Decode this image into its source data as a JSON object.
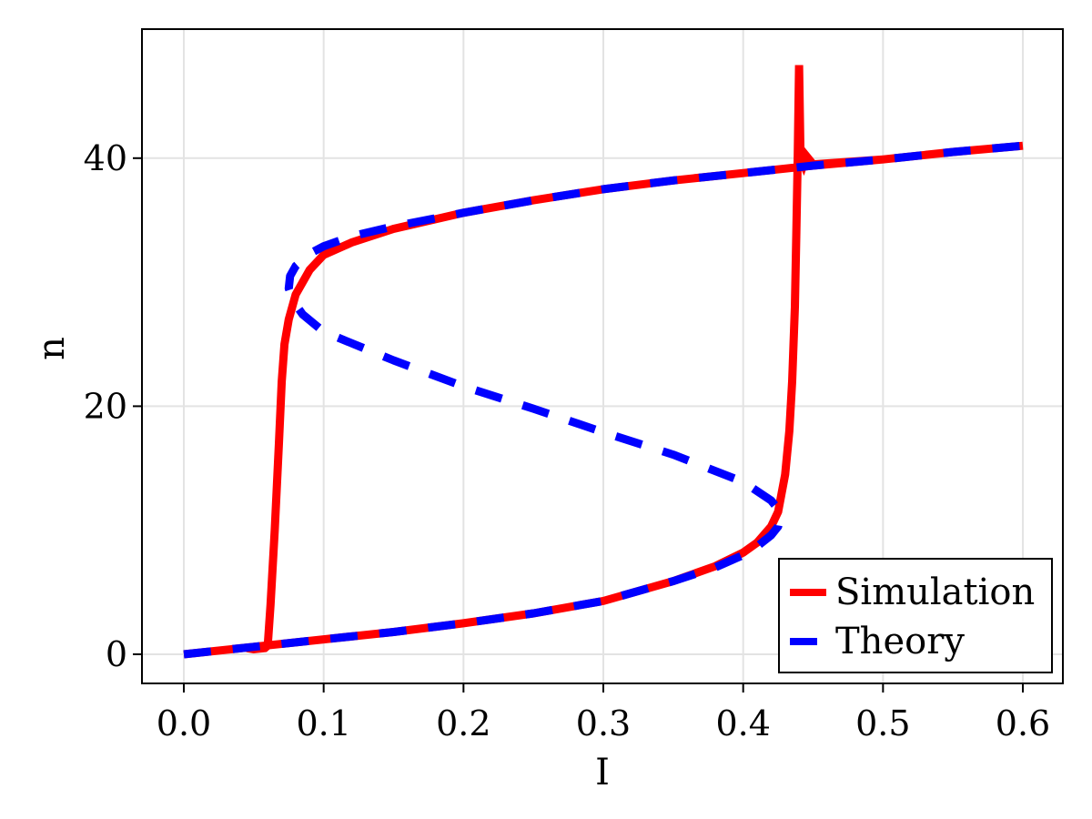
{
  "chart_data": {
    "type": "line",
    "title": "",
    "xlabel": "I",
    "ylabel": "n",
    "xlim": [
      -0.03,
      0.63
    ],
    "ylim": [
      -2.4,
      50.3
    ],
    "xticks": [
      0.0,
      0.1,
      0.2,
      0.3,
      0.4,
      0.5,
      0.6
    ],
    "xtick_labels": [
      "0.0",
      "0.1",
      "0.2",
      "0.3",
      "0.4",
      "0.5",
      "0.6"
    ],
    "yticks": [
      0,
      20,
      40
    ],
    "ytick_labels": [
      "0",
      "20",
      "40"
    ],
    "grid": true,
    "legend_position": "lower right",
    "series": [
      {
        "name": "Simulation",
        "color": "#ff0000",
        "style": "solid",
        "x": [
          0.0,
          0.05,
          0.1,
          0.15,
          0.2,
          0.25,
          0.3,
          0.35,
          0.38,
          0.4,
          0.41,
          0.42,
          0.425,
          0.43,
          0.433,
          0.435,
          0.437,
          0.438,
          0.439,
          0.44,
          0.441,
          0.443,
          0.445,
          0.45,
          0.5,
          0.55,
          0.6,
          0.55,
          0.5,
          0.45,
          0.4,
          0.35,
          0.3,
          0.25,
          0.2,
          0.15,
          0.12,
          0.1,
          0.09,
          0.08,
          0.075,
          0.072,
          0.07,
          0.068,
          0.065,
          0.062,
          0.06,
          0.058,
          0.05,
          0.045
        ],
        "y": [
          0.0,
          0.6,
          1.2,
          1.8,
          2.5,
          3.3,
          4.3,
          5.9,
          7.1,
          8.2,
          9.0,
          10.3,
          11.5,
          14.5,
          18.0,
          22.0,
          28.0,
          34.0,
          40.0,
          47.5,
          40.0,
          39.5,
          40.2,
          39.5,
          39.9,
          40.5,
          41.0,
          40.5,
          39.9,
          39.4,
          38.8,
          38.2,
          37.5,
          36.6,
          35.6,
          34.3,
          33.2,
          32.2,
          31.0,
          29.0,
          27.0,
          25.0,
          22.0,
          17.0,
          10.0,
          4.0,
          0.7,
          0.5,
          0.4,
          0.5
        ]
      },
      {
        "name": "Theory",
        "color": "#0000ff",
        "style": "dashed",
        "x": [
          0.0,
          0.05,
          0.1,
          0.15,
          0.2,
          0.25,
          0.3,
          0.35,
          0.38,
          0.4,
          0.41,
          0.42,
          0.425,
          0.426,
          0.425,
          0.42,
          0.4,
          0.35,
          0.3,
          0.25,
          0.2,
          0.15,
          0.1,
          0.085,
          0.078,
          0.075,
          0.076,
          0.08,
          0.09,
          0.1,
          0.12,
          0.15,
          0.2,
          0.25,
          0.3,
          0.35,
          0.4,
          0.45,
          0.5,
          0.55,
          0.6
        ],
        "y": [
          0.0,
          0.6,
          1.2,
          1.8,
          2.5,
          3.3,
          4.3,
          5.9,
          7.0,
          8.0,
          8.7,
          9.6,
          10.3,
          11.0,
          11.7,
          12.4,
          13.9,
          16.1,
          17.9,
          19.8,
          21.6,
          23.7,
          26.0,
          27.4,
          28.5,
          29.5,
          30.5,
          31.3,
          32.3,
          32.9,
          33.7,
          34.5,
          35.6,
          36.6,
          37.5,
          38.2,
          38.8,
          39.4,
          39.9,
          40.5,
          41.0
        ]
      }
    ]
  },
  "legend": {
    "items": [
      {
        "label": "Simulation",
        "color": "#ff0000"
      },
      {
        "label": "Theory",
        "color": "#0000ff"
      }
    ]
  },
  "axes": {
    "xlabel": "I",
    "ylabel": "n"
  }
}
